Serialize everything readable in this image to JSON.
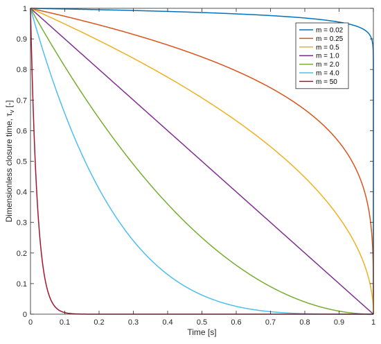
{
  "chart_data": {
    "type": "line",
    "xlabel": "Time [s]",
    "ylabel": "Dimensionless closure time, τ",
    "ylabel_subscript": "v",
    "ylabel_unit": " [-]",
    "xlim": [
      0,
      1
    ],
    "ylim": [
      0,
      1
    ],
    "x_ticks": [
      0,
      0.1,
      0.2,
      0.3,
      0.4,
      0.5,
      0.6,
      0.7,
      0.8,
      0.9,
      1
    ],
    "x_tick_labels": [
      "0",
      "0.1",
      "0.2",
      "0.3",
      "0.4",
      "0.5",
      "0.6",
      "0.7",
      "0.8",
      "0.9",
      "1"
    ],
    "y_ticks": [
      0,
      0.1,
      0.2,
      0.3,
      0.4,
      0.5,
      0.6,
      0.7,
      0.8,
      0.9,
      1
    ],
    "y_tick_labels": [
      "0",
      "0.1",
      "0.2",
      "0.3",
      "0.4",
      "0.5",
      "0.6",
      "0.7",
      "0.8",
      "0.9",
      "1"
    ],
    "grid": false,
    "legend_position": "top-right",
    "function": "y = (1 - x)^m",
    "series": [
      {
        "name": "m = 0.02",
        "m": 0.02,
        "color": "#0072BD"
      },
      {
        "name": "m = 0.25",
        "m": 0.25,
        "color": "#D95319"
      },
      {
        "name": "m = 0.5",
        "m": 0.5,
        "color": "#EDB120"
      },
      {
        "name": "m = 1.0",
        "m": 1.0,
        "color": "#7E2F8E"
      },
      {
        "name": "m = 2.0",
        "m": 2.0,
        "color": "#77AC30"
      },
      {
        "name": "m = 4.0",
        "m": 4.0,
        "color": "#4DBEEE"
      },
      {
        "name": "m = 50",
        "m": 50,
        "color": "#A2142F"
      }
    ]
  }
}
